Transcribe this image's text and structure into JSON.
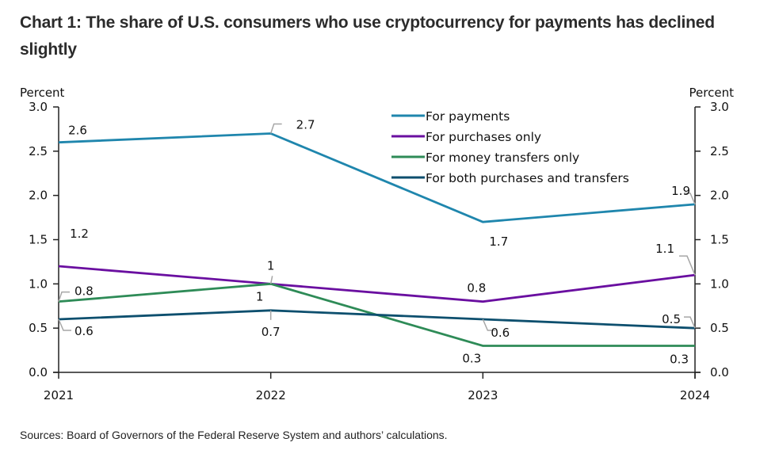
{
  "title": "Chart 1: The share of U.S. consumers who use cryptocurrency for payments has declined slightly",
  "source": "Sources: Board of Governors of the Federal Reserve System and authors’ calculations.",
  "chart_data": {
    "type": "line",
    "title": "Chart 1: The share of U.S. consumers who use cryptocurrency for payments has declined slightly",
    "x": [
      "2021",
      "2022",
      "2023",
      "2024"
    ],
    "xlabel": "",
    "ylabel_left": "Percent",
    "ylabel_right": "Percent",
    "ylim": [
      0,
      3.0
    ],
    "yticks": [
      "0.0",
      "0.5",
      "1.0",
      "1.5",
      "2.0",
      "2.5",
      "3.0"
    ],
    "grid": false,
    "legend_position": "top-center",
    "series": [
      {
        "name": "For payments",
        "color": "#1f86ad",
        "values": [
          2.6,
          2.7,
          1.7,
          1.9
        ],
        "labels": [
          "2.6",
          "2.7",
          "1.7",
          "1.9"
        ]
      },
      {
        "name": "For purchases only",
        "color": "#6a0fa0",
        "values": [
          1.2,
          1.0,
          0.8,
          1.1
        ],
        "labels": [
          "1.2",
          "1",
          "0.8",
          "1.1"
        ]
      },
      {
        "name": "For money transfers only",
        "color": "#2e8b57",
        "values": [
          0.8,
          1.0,
          0.3,
          0.3
        ],
        "labels": [
          "0.8",
          "1",
          "0.3",
          "0.3"
        ]
      },
      {
        "name": "For both purchases and transfers",
        "color": "#0d4f6e",
        "values": [
          0.6,
          0.7,
          0.6,
          0.5
        ],
        "labels": [
          "0.6",
          "0.7",
          "0.6",
          "0.5"
        ]
      }
    ]
  }
}
